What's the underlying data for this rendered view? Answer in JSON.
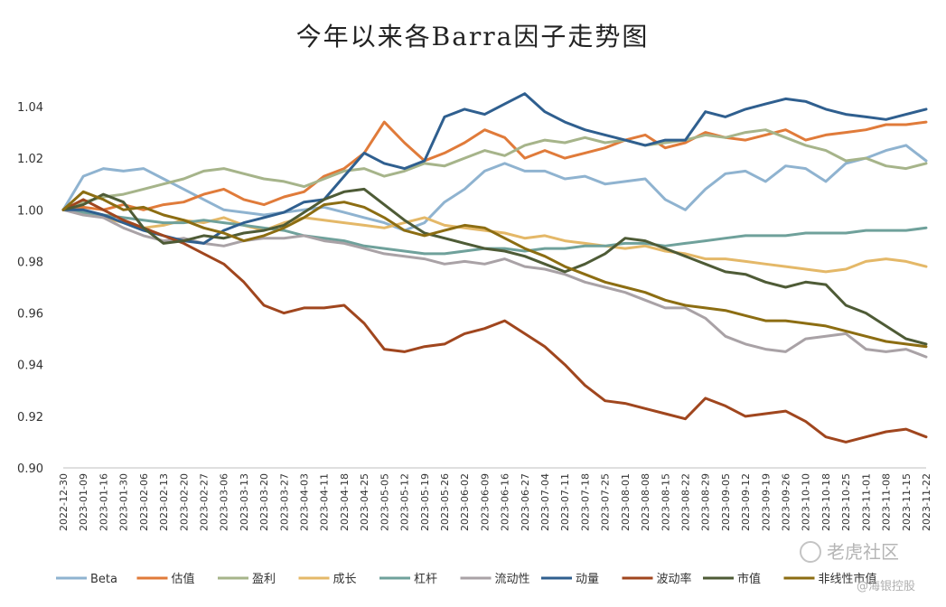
{
  "chart_data": {
    "type": "line",
    "title": "今年以来各Barra因子走势图",
    "xlabel": "",
    "ylabel": "",
    "ylim": [
      0.9,
      1.04
    ],
    "yticks": [
      "0.90",
      "0.92",
      "0.94",
      "0.96",
      "0.98",
      "1.00",
      "1.02",
      "1.04"
    ],
    "grid": false,
    "legend_position": "bottom",
    "x": [
      "2022-12-30",
      "2023-01-09",
      "2023-01-16",
      "2023-01-30",
      "2023-02-06",
      "2023-02-13",
      "2023-02-20",
      "2023-02-27",
      "2023-03-06",
      "2023-03-13",
      "2023-03-20",
      "2023-03-27",
      "2023-04-03",
      "2023-04-11",
      "2023-04-18",
      "2023-04-25",
      "2023-05-05",
      "2023-05-12",
      "2023-05-19",
      "2023-05-26",
      "2023-06-02",
      "2023-06-09",
      "2023-06-16",
      "2023-06-27",
      "2023-07-04",
      "2023-07-11",
      "2023-07-18",
      "2023-07-25",
      "2023-08-01",
      "2023-08-08",
      "2023-08-15",
      "2023-08-22",
      "2023-08-29",
      "2023-09-05",
      "2023-09-12",
      "2023-09-19",
      "2023-09-26",
      "2023-10-10",
      "2023-10-18",
      "2023-10-25",
      "2023-11-01",
      "2023-11-08",
      "2023-11-15",
      "2023-11-22"
    ],
    "series": [
      {
        "name": "Beta",
        "color": "#8fb3d0",
        "values": [
          1.0,
          1.013,
          1.016,
          1.015,
          1.016,
          1.012,
          1.008,
          1.004,
          1.0,
          0.999,
          0.998,
          0.999,
          1.0,
          1.001,
          0.999,
          0.997,
          0.995,
          0.992,
          0.995,
          1.003,
          1.008,
          1.015,
          1.018,
          1.015,
          1.015,
          1.012,
          1.013,
          1.01,
          1.011,
          1.012,
          1.004,
          1.0,
          1.008,
          1.014,
          1.015,
          1.011,
          1.017,
          1.016,
          1.011,
          1.018,
          1.02,
          1.023,
          1.025,
          1.019
        ]
      },
      {
        "name": "估值",
        "color": "#e07b3a",
        "values": [
          1.0,
          1.001,
          1.0,
          1.002,
          1.0,
          1.002,
          1.003,
          1.006,
          1.008,
          1.004,
          1.002,
          1.005,
          1.007,
          1.013,
          1.016,
          1.022,
          1.034,
          1.026,
          1.019,
          1.022,
          1.026,
          1.031,
          1.028,
          1.02,
          1.023,
          1.02,
          1.022,
          1.024,
          1.027,
          1.029,
          1.024,
          1.026,
          1.03,
          1.028,
          1.027,
          1.029,
          1.031,
          1.027,
          1.029,
          1.03,
          1.031,
          1.033,
          1.033,
          1.034
        ]
      },
      {
        "name": "盈利",
        "color": "#a6b48a",
        "values": [
          1.0,
          1.003,
          1.005,
          1.006,
          1.008,
          1.01,
          1.012,
          1.015,
          1.016,
          1.014,
          1.012,
          1.011,
          1.009,
          1.012,
          1.015,
          1.016,
          1.013,
          1.015,
          1.018,
          1.017,
          1.02,
          1.023,
          1.021,
          1.025,
          1.027,
          1.026,
          1.028,
          1.026,
          1.027,
          1.025,
          1.026,
          1.027,
          1.029,
          1.028,
          1.03,
          1.031,
          1.028,
          1.025,
          1.023,
          1.019,
          1.02,
          1.017,
          1.016,
          1.018
        ]
      },
      {
        "name": "成长",
        "color": "#e4b868",
        "values": [
          1.0,
          0.999,
          0.997,
          0.995,
          0.993,
          0.994,
          0.996,
          0.995,
          0.997,
          0.994,
          0.992,
          0.995,
          0.997,
          0.996,
          0.995,
          0.994,
          0.993,
          0.995,
          0.997,
          0.994,
          0.993,
          0.992,
          0.991,
          0.989,
          0.99,
          0.988,
          0.987,
          0.986,
          0.985,
          0.986,
          0.984,
          0.983,
          0.981,
          0.981,
          0.98,
          0.979,
          0.978,
          0.977,
          0.976,
          0.977,
          0.98,
          0.981,
          0.98,
          0.978
        ]
      },
      {
        "name": "杠杆",
        "color": "#6fa19b",
        "values": [
          1.0,
          0.999,
          0.998,
          0.997,
          0.996,
          0.995,
          0.995,
          0.996,
          0.995,
          0.994,
          0.993,
          0.992,
          0.99,
          0.989,
          0.988,
          0.986,
          0.985,
          0.984,
          0.983,
          0.983,
          0.984,
          0.985,
          0.985,
          0.984,
          0.985,
          0.985,
          0.986,
          0.986,
          0.987,
          0.987,
          0.986,
          0.987,
          0.988,
          0.989,
          0.99,
          0.99,
          0.99,
          0.991,
          0.991,
          0.991,
          0.992,
          0.992,
          0.992,
          0.993
        ]
      },
      {
        "name": "流动性",
        "color": "#a9a2a6",
        "values": [
          1.0,
          0.998,
          0.997,
          0.993,
          0.99,
          0.988,
          0.989,
          0.987,
          0.986,
          0.988,
          0.989,
          0.989,
          0.99,
          0.988,
          0.987,
          0.985,
          0.983,
          0.982,
          0.981,
          0.979,
          0.98,
          0.979,
          0.981,
          0.978,
          0.977,
          0.975,
          0.972,
          0.97,
          0.968,
          0.965,
          0.962,
          0.962,
          0.958,
          0.951,
          0.948,
          0.946,
          0.945,
          0.95,
          0.951,
          0.952,
          0.946,
          0.945,
          0.946,
          0.943
        ]
      },
      {
        "name": "动量",
        "color": "#2f5f8f",
        "values": [
          1.0,
          1.0,
          0.998,
          0.995,
          0.992,
          0.99,
          0.988,
          0.987,
          0.992,
          0.995,
          0.997,
          0.999,
          1.003,
          1.004,
          1.013,
          1.022,
          1.018,
          1.016,
          1.019,
          1.036,
          1.039,
          1.037,
          1.041,
          1.045,
          1.038,
          1.034,
          1.031,
          1.029,
          1.027,
          1.025,
          1.027,
          1.027,
          1.038,
          1.036,
          1.039,
          1.041,
          1.043,
          1.042,
          1.039,
          1.037,
          1.036,
          1.035,
          1.037,
          1.039
        ]
      },
      {
        "name": "波动率",
        "color": "#a0461e",
        "values": [
          1.0,
          1.004,
          1.0,
          0.996,
          0.993,
          0.99,
          0.987,
          0.983,
          0.979,
          0.972,
          0.963,
          0.96,
          0.962,
          0.962,
          0.963,
          0.956,
          0.946,
          0.945,
          0.947,
          0.948,
          0.952,
          0.954,
          0.957,
          0.952,
          0.947,
          0.94,
          0.932,
          0.926,
          0.925,
          0.923,
          0.921,
          0.919,
          0.927,
          0.924,
          0.92,
          0.921,
          0.922,
          0.918,
          0.912,
          0.91,
          0.912,
          0.914,
          0.915,
          0.912
        ]
      },
      {
        "name": "市值",
        "color": "#4e5b36",
        "values": [
          1.0,
          1.002,
          1.006,
          1.003,
          0.993,
          0.987,
          0.988,
          0.99,
          0.989,
          0.991,
          0.992,
          0.994,
          0.999,
          1.004,
          1.007,
          1.008,
          1.002,
          0.996,
          0.991,
          0.989,
          0.987,
          0.985,
          0.984,
          0.982,
          0.979,
          0.976,
          0.979,
          0.983,
          0.989,
          0.988,
          0.985,
          0.982,
          0.979,
          0.976,
          0.975,
          0.972,
          0.97,
          0.972,
          0.971,
          0.963,
          0.96,
          0.955,
          0.95,
          0.948
        ]
      },
      {
        "name": "非线性市值",
        "color": "#8c6d12",
        "values": [
          1.0,
          1.007,
          1.004,
          1.0,
          1.001,
          0.998,
          0.996,
          0.993,
          0.991,
          0.988,
          0.99,
          0.993,
          0.997,
          1.002,
          1.003,
          1.001,
          0.997,
          0.992,
          0.99,
          0.992,
          0.994,
          0.993,
          0.989,
          0.985,
          0.982,
          0.978,
          0.975,
          0.972,
          0.97,
          0.968,
          0.965,
          0.963,
          0.962,
          0.961,
          0.959,
          0.957,
          0.957,
          0.956,
          0.955,
          0.953,
          0.951,
          0.949,
          0.948,
          0.947
        ]
      }
    ]
  },
  "watermark": {
    "brand": "老虎社区",
    "account": "@海银控股"
  }
}
